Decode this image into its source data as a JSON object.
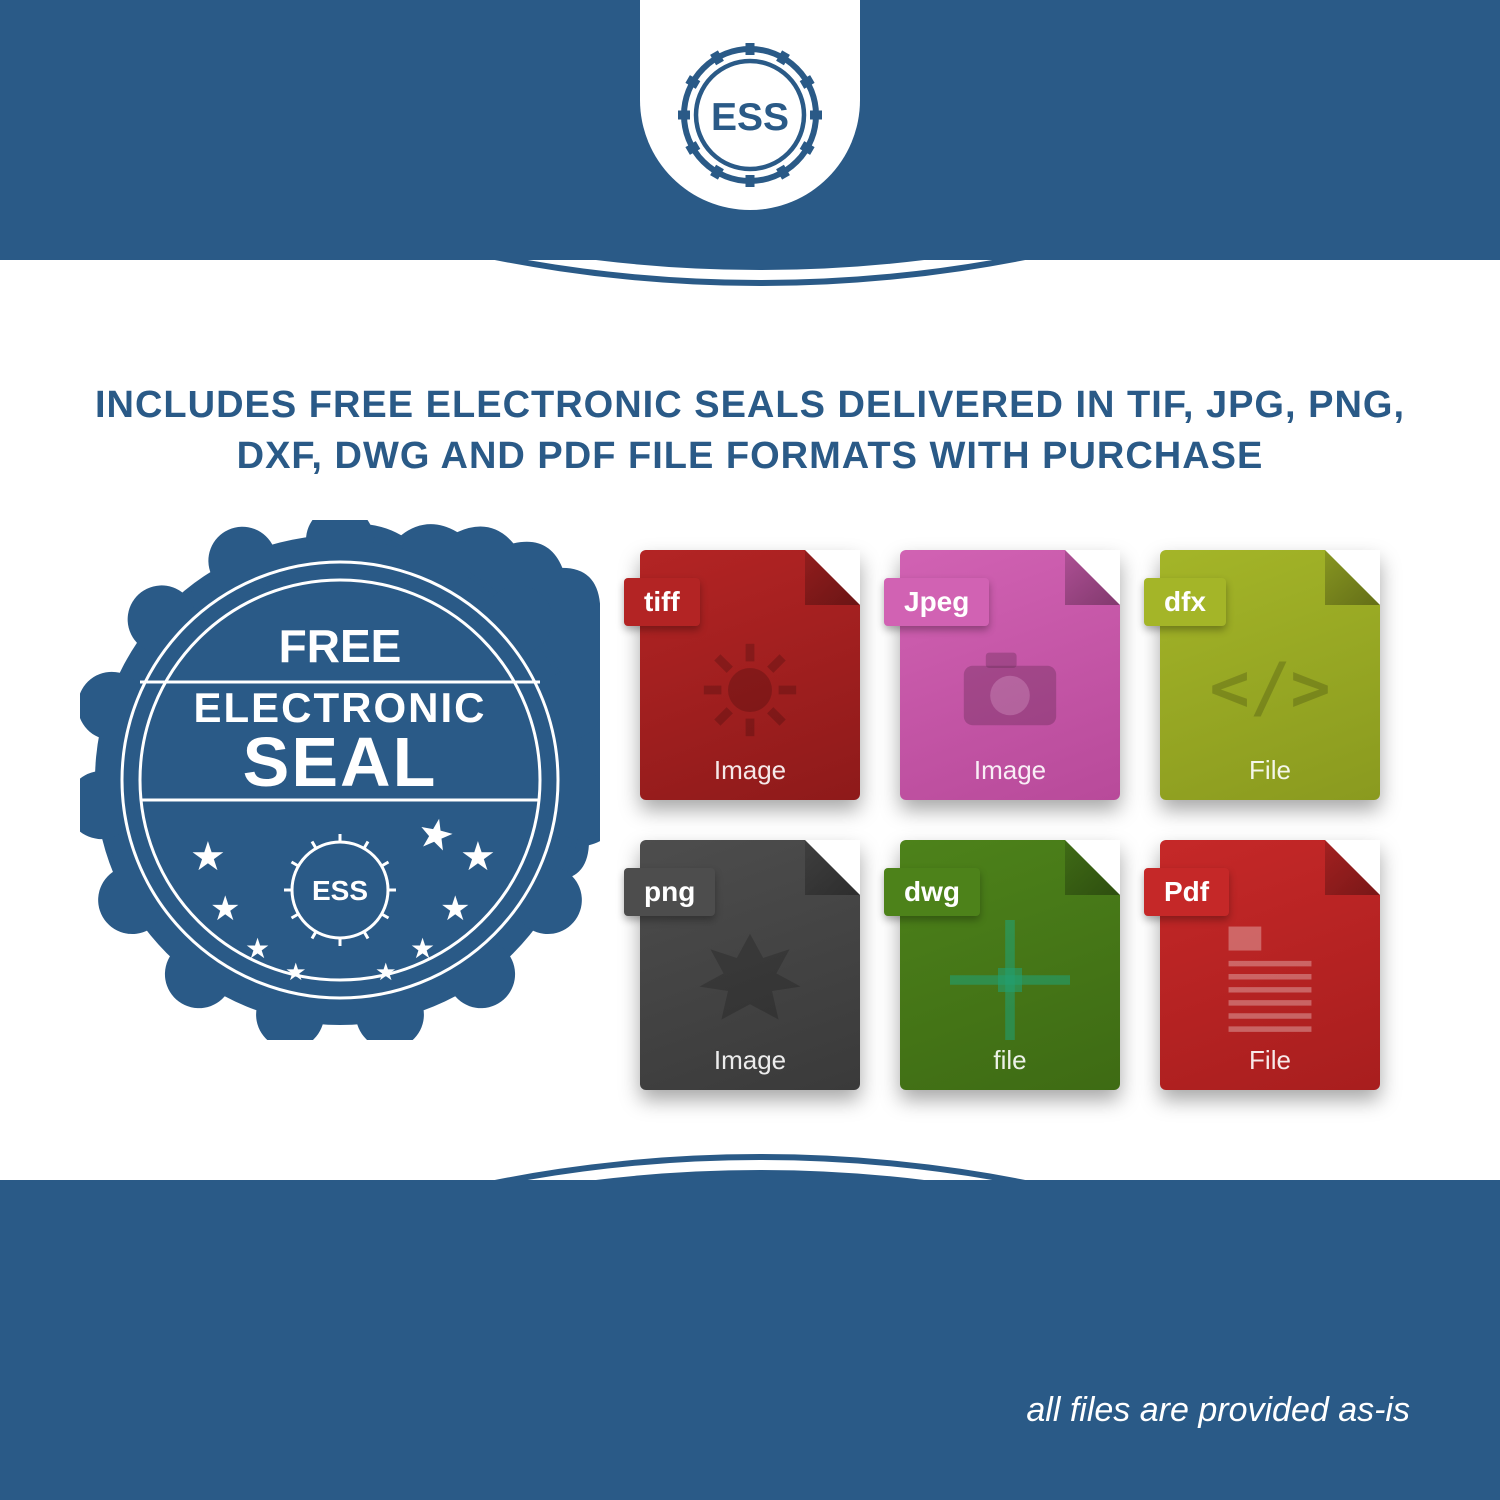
{
  "brand": {
    "logo_text": "ESS",
    "logo_color": "#2a5a87",
    "logo_bg": "#ffffff"
  },
  "colors": {
    "primary": "#2a5a87",
    "white": "#ffffff"
  },
  "headline": "INCLUDES FREE ELECTRONIC SEALS DELIVERED IN TIF, JPG, PNG, DXF, DWG AND PDF FILE FORMATS WITH PURCHASE",
  "seal": {
    "line1": "FREE",
    "line2": "ELECTRONIC",
    "line3": "SEAL",
    "sub_logo": "ESS",
    "fill": "#2a5a87",
    "text_color": "#ffffff"
  },
  "files": [
    {
      "tab": "tiff",
      "footer": "Image",
      "bg": "#8e1a1a",
      "bg2": "#b32424",
      "tab_bg": "#b32424",
      "glyph": "gear"
    },
    {
      "tab": "Jpeg",
      "footer": "Image",
      "bg": "#b84a9a",
      "bg2": "#d162b3",
      "tab_bg": "#d162b3",
      "glyph": "camera"
    },
    {
      "tab": "dfx",
      "footer": "File",
      "bg": "#8a9a1f",
      "bg2": "#a4b528",
      "tab_bg": "#a4b528",
      "glyph": "code"
    },
    {
      "tab": "png",
      "footer": "Image",
      "bg": "#3a3a3a",
      "bg2": "#4d4d4d",
      "tab_bg": "#4d4d4d",
      "glyph": "burst"
    },
    {
      "tab": "dwg",
      "footer": "file",
      "bg": "#3e6b14",
      "bg2": "#4d821a",
      "tab_bg": "#4d821a",
      "glyph": "cross"
    },
    {
      "tab": "Pdf",
      "footer": "File",
      "bg": "#a81e1e",
      "bg2": "#c52828",
      "tab_bg": "#c52828",
      "glyph": "doc"
    }
  ],
  "footer_note": "all files are provided as-is"
}
